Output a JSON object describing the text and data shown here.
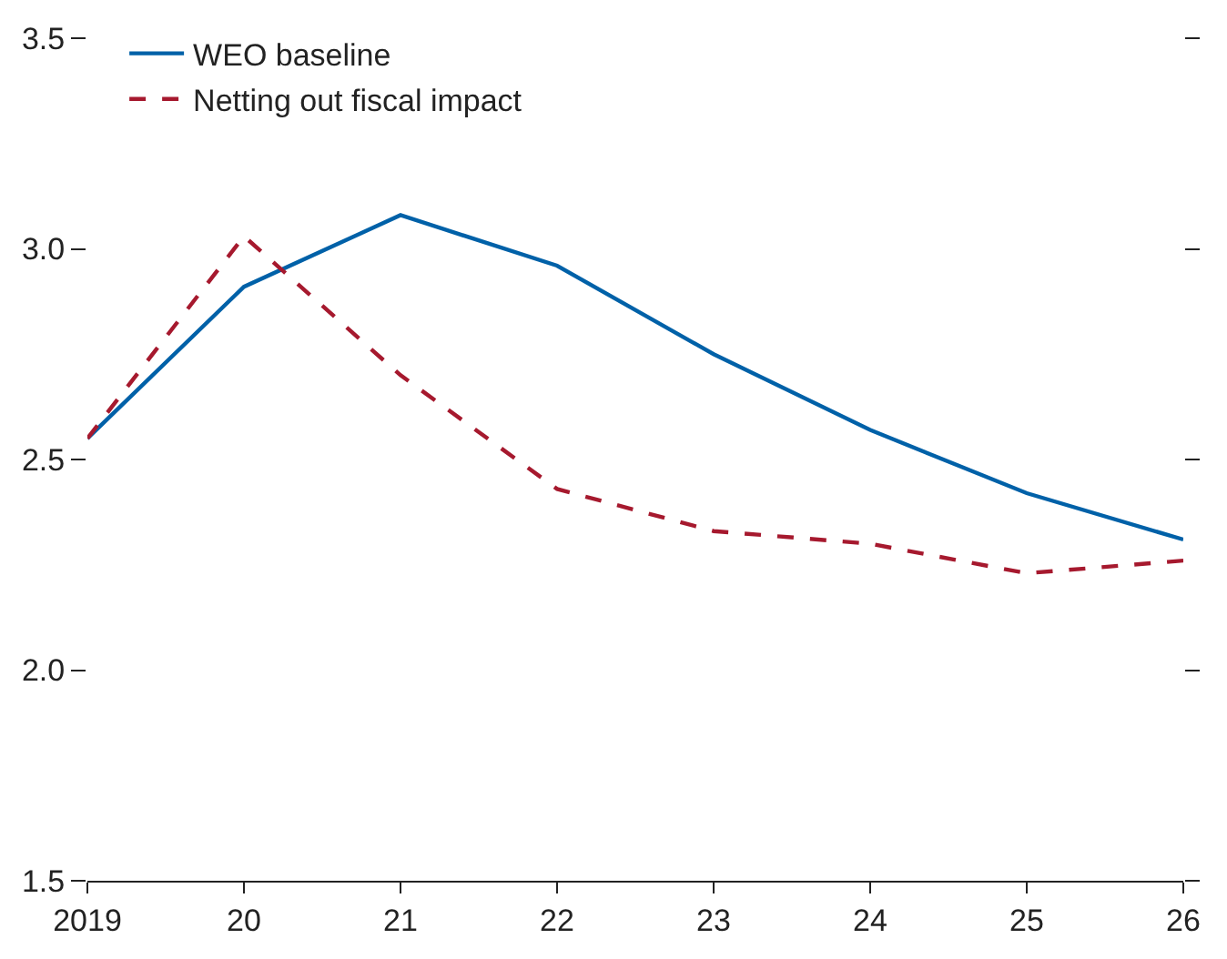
{
  "chart_data": {
    "type": "line",
    "x": [
      2019,
      2020,
      2021,
      2022,
      2023,
      2024,
      2025,
      2026
    ],
    "series": [
      {
        "name": "WEO baseline",
        "color": "#0061a8",
        "line_style": "solid",
        "values": [
          2.55,
          2.91,
          3.08,
          2.96,
          2.75,
          2.57,
          2.42,
          2.31
        ]
      },
      {
        "name": "Netting out fiscal impact",
        "color": "#a6192e",
        "line_style": "dashed",
        "values": [
          2.55,
          3.03,
          2.7,
          2.43,
          2.33,
          2.3,
          2.23,
          2.26
        ]
      }
    ],
    "xlim": [
      2019,
      2026
    ],
    "xticks": [
      2019,
      {
        "value": 2020,
        "label": "20"
      },
      {
        "value": 2021,
        "label": "21"
      },
      {
        "value": 2022,
        "label": "22"
      },
      {
        "value": 2023,
        "label": "23"
      },
      {
        "value": 2024,
        "label": "24"
      },
      {
        "value": 2025,
        "label": "25"
      },
      {
        "value": 2026,
        "label": "26"
      }
    ],
    "ylim": [
      1.5,
      3.5
    ],
    "yticks": [
      {
        "value": 1.5,
        "label": "1.5"
      },
      {
        "value": 2.0,
        "label": "2.0"
      },
      {
        "value": 2.5,
        "label": "2.5"
      },
      {
        "value": 3.0,
        "label": "3.0"
      },
      {
        "value": 3.5,
        "label": "3.5"
      }
    ],
    "legend": "top left",
    "marker": "none"
  }
}
